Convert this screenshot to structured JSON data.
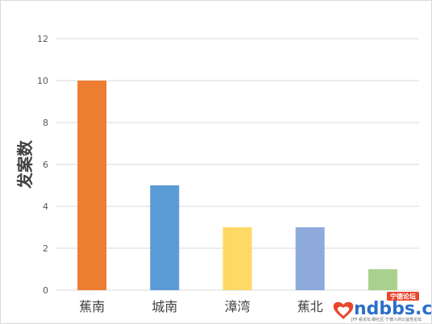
{
  "chart_data": {
    "type": "bar",
    "categories": [
      "蕉南",
      "城南",
      "漳湾",
      "蕉北",
      ""
    ],
    "values": [
      10,
      5,
      3,
      3,
      1
    ],
    "colors": [
      "#ed7d31",
      "#5b9bd5",
      "#ffd966",
      "#8eaadb",
      "#a9d18e"
    ],
    "ylabel": "发案数",
    "ylim": [
      0,
      12
    ],
    "yticks": [
      0,
      2,
      4,
      6,
      8,
      10,
      12
    ],
    "grid": true,
    "legend": false
  },
  "watermark": {
    "main": "ndbbs.com",
    "badge": "宁德论坛",
    "tagline": "JFP·看论坛·聊社区·宁德人的公益性论坛",
    "heart_icon": "heart-icon"
  }
}
